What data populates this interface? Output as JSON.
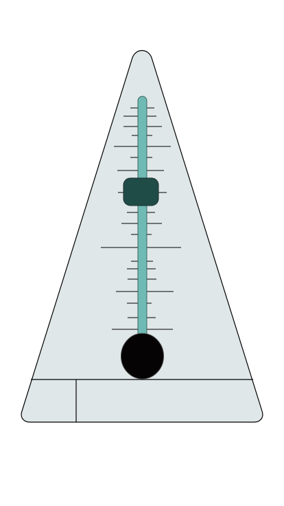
{
  "metronome": {
    "body_color": "#dfe7e8",
    "outline_color": "#000000",
    "pendulum_color": "#6fbab4",
    "slider_weight_color": "#204c48",
    "bob_color": "#050303",
    "tempo_ticks": 20
  }
}
